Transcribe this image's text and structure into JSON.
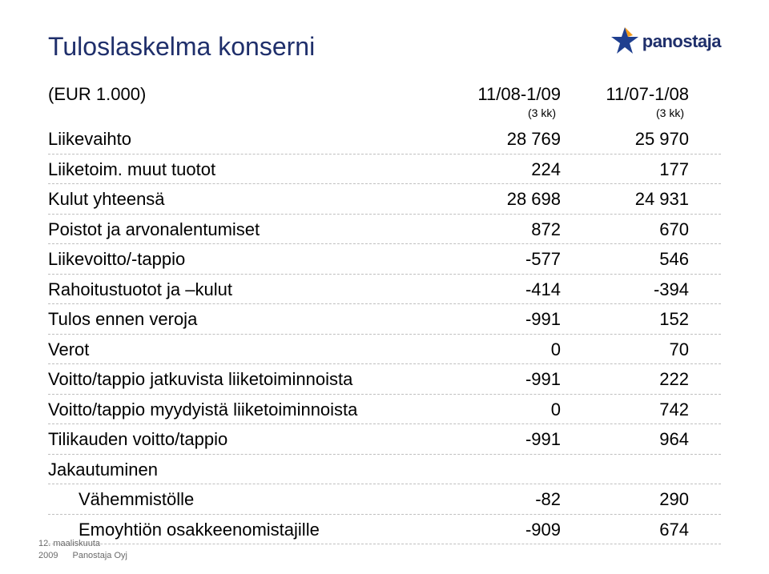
{
  "title": "Tuloslaskelma konserni",
  "logo": {
    "text": "panostaja"
  },
  "header": {
    "eur_label": "(EUR 1.000)",
    "period1": "11/08-1/09",
    "period2": "11/07-1/08",
    "unit1": "(3 kk)",
    "unit2": "(3 kk)"
  },
  "rows": [
    {
      "label": "Liikevaihto",
      "v1": "28 769",
      "v2": "25 970"
    },
    {
      "label": "Liiketoim. muut tuotot",
      "v1": "224",
      "v2": "177"
    },
    {
      "label": "Kulut yhteensä",
      "v1": "28 698",
      "v2": "24 931"
    },
    {
      "label": "Poistot ja arvonalentumiset",
      "v1": "872",
      "v2": "670"
    },
    {
      "label": "Liikevoitto/-tappio",
      "v1": "-577",
      "v2": "546"
    },
    {
      "label": "Rahoitustuotot ja –kulut",
      "v1": "-414",
      "v2": "-394"
    },
    {
      "label": "Tulos ennen veroja",
      "v1": "-991",
      "v2": "152"
    },
    {
      "label": "Verot",
      "v1": "0",
      "v2": "70"
    },
    {
      "label": "Voitto/tappio jatkuvista liiketoiminnoista",
      "v1": "-991",
      "v2": "222"
    },
    {
      "label": "Voitto/tappio myydyistä liiketoiminnoista",
      "v1": "0",
      "v2": "742"
    },
    {
      "label": "Tilikauden voitto/tappio",
      "v1": "-991",
      "v2": "964"
    },
    {
      "label": "Jakautuminen",
      "v1": "",
      "v2": ""
    },
    {
      "label": "Vähemmistölle",
      "v1": "-82",
      "v2": "290",
      "indent": true
    },
    {
      "label": "Emoyhtiön osakkeenomistajille",
      "v1": "-909",
      "v2": "674",
      "indent": true
    }
  ],
  "footer": {
    "date1": "12. maaliskuuta",
    "date2": "2009",
    "company": "Panostaja Oyj"
  },
  "colors": {
    "title": "#1f2f6b",
    "text": "#000000",
    "border": "#bfbfbf",
    "footer": "#6a6a6a",
    "star_blue": "#1f3f8f",
    "star_orange": "#f39a1a"
  }
}
